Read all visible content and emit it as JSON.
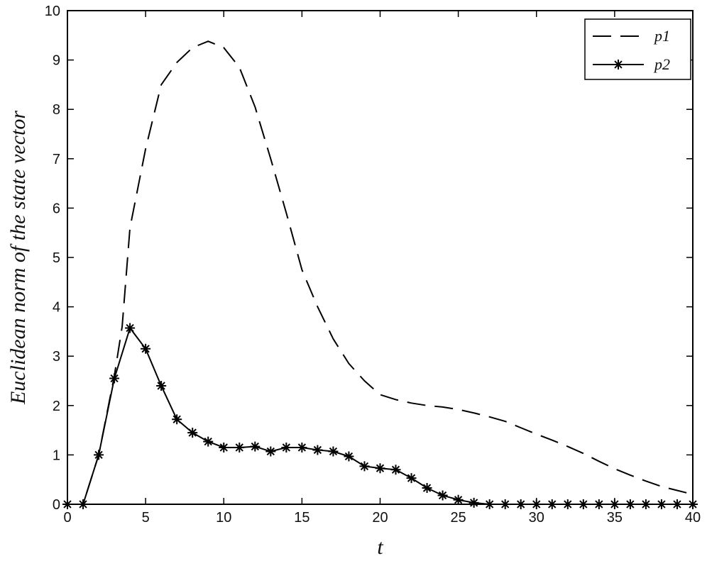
{
  "chart_data": {
    "type": "line",
    "xlabel": "t",
    "ylabel": "Euclidean norm of the state vector",
    "xlim": [
      0,
      40
    ],
    "ylim": [
      0,
      10
    ],
    "xticks": [
      0,
      5,
      10,
      15,
      20,
      25,
      30,
      35,
      40
    ],
    "yticks": [
      0,
      1,
      2,
      3,
      4,
      5,
      6,
      7,
      8,
      9,
      10
    ],
    "grid": false,
    "legend_position": "top-right",
    "series": [
      {
        "name": "p1",
        "style": "dashed",
        "color": "#000000",
        "x": [
          0,
          1,
          2,
          3,
          3.5,
          4,
          5,
          6,
          7,
          8,
          9,
          10,
          11,
          12,
          13,
          14,
          15,
          16,
          17,
          18,
          19,
          20,
          21,
          22,
          23,
          24,
          25,
          26,
          27,
          28,
          29,
          30,
          31,
          32,
          33,
          34,
          35,
          36,
          37,
          38,
          39,
          40
        ],
        "y": [
          0,
          0,
          1.0,
          2.6,
          3.6,
          5.6,
          7.2,
          8.5,
          8.95,
          9.25,
          9.38,
          9.25,
          8.85,
          8.05,
          7.0,
          5.9,
          4.75,
          4.0,
          3.35,
          2.85,
          2.5,
          2.22,
          2.12,
          2.05,
          2.0,
          1.97,
          1.92,
          1.85,
          1.77,
          1.68,
          1.55,
          1.42,
          1.3,
          1.17,
          1.03,
          0.87,
          0.72,
          0.59,
          0.47,
          0.36,
          0.28,
          0.2
        ]
      },
      {
        "name": "p2",
        "style": "solid-star",
        "color": "#000000",
        "x": [
          0,
          1,
          2,
          3,
          4,
          5,
          6,
          7,
          8,
          9,
          10,
          11,
          12,
          13,
          14,
          15,
          16,
          17,
          18,
          19,
          20,
          21,
          22,
          23,
          24,
          25,
          26,
          27,
          28,
          29,
          30,
          31,
          32,
          33,
          34,
          35,
          36,
          37,
          38,
          39,
          40
        ],
        "y": [
          0,
          0,
          1.0,
          2.55,
          3.57,
          3.15,
          2.4,
          1.72,
          1.45,
          1.27,
          1.15,
          1.15,
          1.17,
          1.07,
          1.15,
          1.15,
          1.1,
          1.07,
          0.97,
          0.77,
          0.73,
          0.7,
          0.53,
          0.33,
          0.18,
          0.09,
          0.03,
          0.0,
          0.0,
          0.0,
          0.0,
          0.0,
          0.0,
          0.0,
          0.0,
          0.0,
          0.0,
          0.0,
          0.0,
          0.0,
          0.0
        ]
      }
    ]
  }
}
